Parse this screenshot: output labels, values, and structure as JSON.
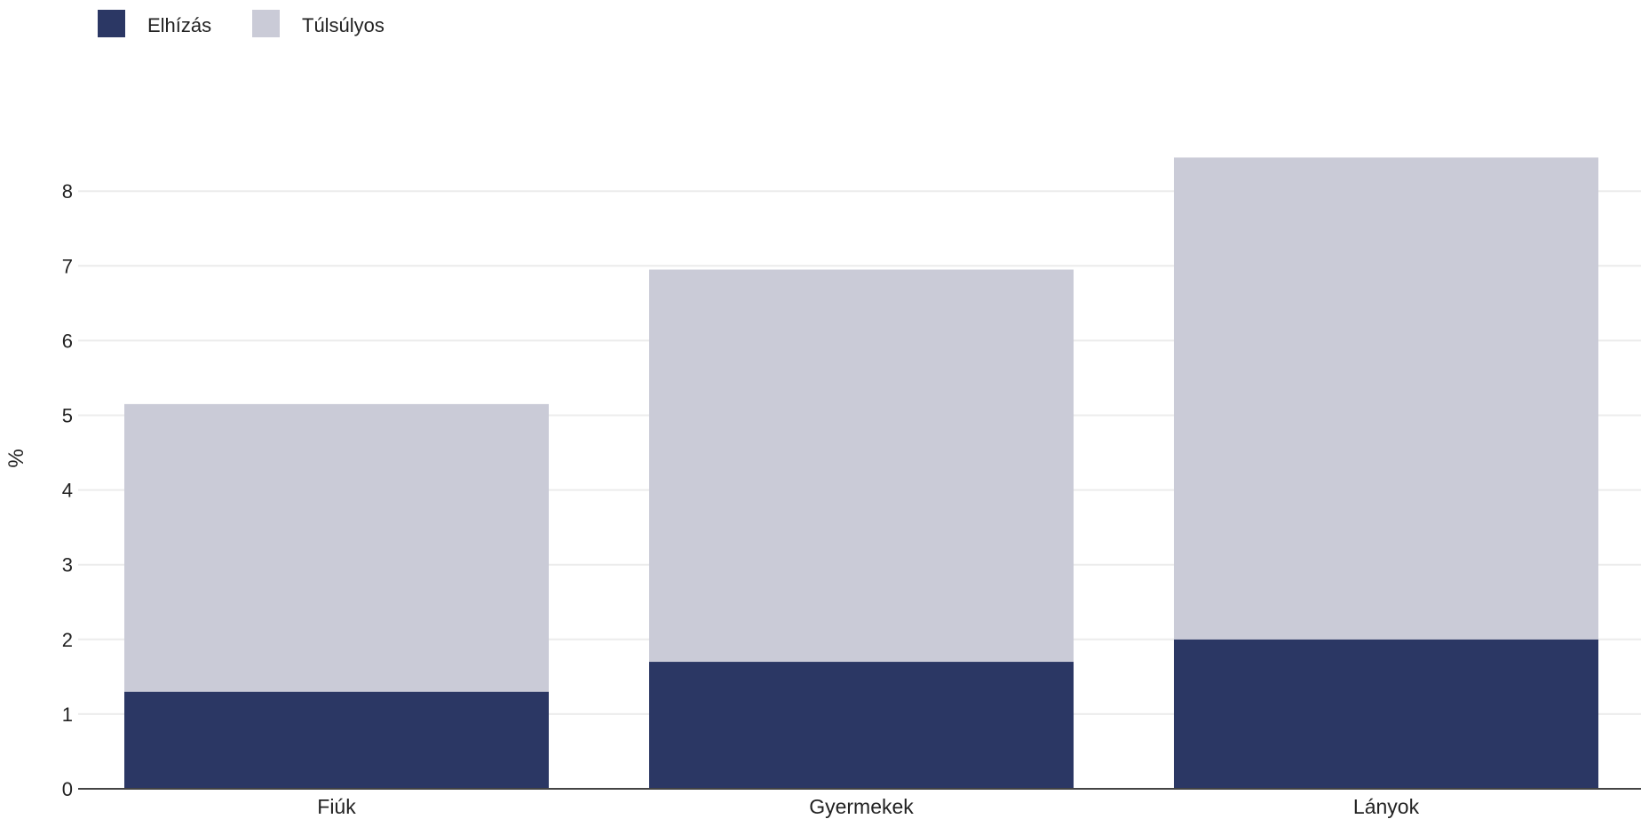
{
  "chart_data": {
    "type": "bar",
    "stacked": true,
    "categories": [
      "Fiúk",
      "Gyermekek",
      "Lányok"
    ],
    "series": [
      {
        "name": "Elhízás",
        "values": [
          1.3,
          1.7,
          2.0
        ],
        "color": "#2b3764"
      },
      {
        "name": "Túlsúlyos",
        "values": [
          3.85,
          5.25,
          6.45
        ],
        "color": "#cacbd7"
      }
    ],
    "ylabel": "%",
    "xlabel": "",
    "ylim": [
      0,
      8.5
    ],
    "yticks": [
      0,
      1,
      2,
      3,
      4,
      5,
      6,
      7,
      8
    ],
    "grid": true,
    "legend_position": "top-left"
  }
}
